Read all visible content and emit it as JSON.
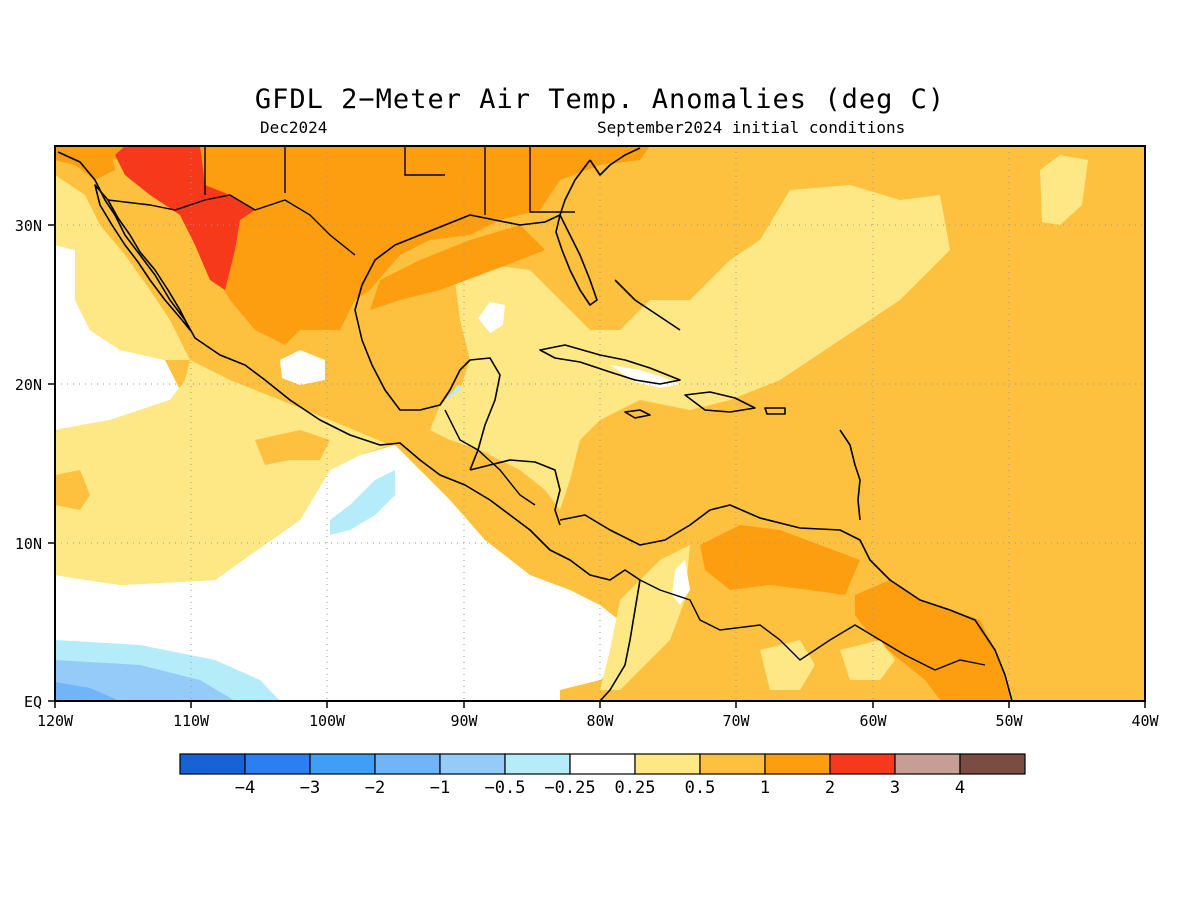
{
  "title": "GFDL 2−Meter Air Temp. Anomalies (deg C)",
  "subtitle_left": "Dec2024",
  "subtitle_right": "September2024 initial conditions",
  "map": {
    "lon_range": [
      -120,
      -40
    ],
    "lat_range": [
      0,
      35
    ],
    "x_tick_labels": [
      "120W",
      "110W",
      "100W",
      "90W",
      "80W",
      "70W",
      "60W",
      "50W",
      "40W"
    ],
    "y_tick_labels": [
      "EQ",
      "10N",
      "20N",
      "30N"
    ],
    "gridlines": "dotted"
  },
  "colorbar": {
    "labels": [
      "−4",
      "−3",
      "−2",
      "−1",
      "−0.5",
      "−0.25",
      "0.25",
      "0.5",
      "1",
      "2",
      "3",
      "4"
    ],
    "colors": [
      "#1763d6",
      "#2a80f0",
      "#3f9ef5",
      "#6fb5f7",
      "#95cbf9",
      "#b4ecf9",
      "#ffffff",
      "#fee785",
      "#fec13f",
      "#fd9e10",
      "#f5391a",
      "#c69e94",
      "#7b4c41"
    ]
  },
  "palette": {
    "ocean_neutral": "#ffffff",
    "weak_warm": "#fee785",
    "moderate_warm": "#fec13f",
    "strong_warm": "#fd9e10",
    "very_strong_warm": "#f5391a",
    "weak_cold": "#b4ecf9",
    "cold": "#95cbf9",
    "colder": "#6fb5f7"
  }
}
